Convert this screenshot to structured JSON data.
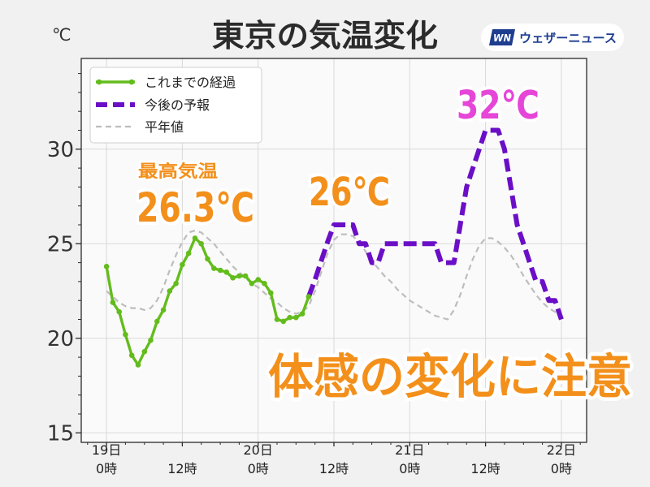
{
  "chart_data": {
    "type": "line",
    "title": "東京の気温変化",
    "ylabel": "℃",
    "xlim": [
      "18日20時",
      "22日4時"
    ],
    "ylim": [
      14.5,
      34.8
    ],
    "grid": true,
    "legend": "top-left",
    "y_ticks": [
      15,
      20,
      25,
      30
    ],
    "x_ticks": [
      {
        "time": "19日0時",
        "day": "19日",
        "hour": "0時"
      },
      {
        "time": "19日12時",
        "hour": "12時"
      },
      {
        "time": "20日0時",
        "day": "20日",
        "hour": "0時"
      },
      {
        "time": "20日12時",
        "hour": "12時"
      },
      {
        "time": "21日0時",
        "day": "21日",
        "hour": "0時"
      },
      {
        "time": "21日12時",
        "hour": "12時"
      },
      {
        "time": "22日0時",
        "day": "22日",
        "hour": "0時"
      }
    ],
    "x": [
      "19日0時",
      "19日1時",
      "19日2時",
      "19日3時",
      "19日4時",
      "19日5時",
      "19日6時",
      "19日7時",
      "19日8時",
      "19日9時",
      "19日10時",
      "19日11時",
      "19日12時",
      "19日13時",
      "19日14時",
      "19日15時",
      "19日16時",
      "19日17時",
      "19日18時",
      "19日19時",
      "19日20時",
      "19日21時",
      "19日22時",
      "19日23時",
      "20日0時",
      "20日1時",
      "20日2時",
      "20日3時",
      "20日4時",
      "20日5時",
      "20日6時",
      "20日7時",
      "20日8時",
      "20日9時",
      "20日10時",
      "20日11時",
      "20日12時",
      "20日13時",
      "20日14時",
      "20日15時",
      "20日16時",
      "20日17時",
      "20日18時",
      "20日19時",
      "20日20時",
      "20日21時",
      "20日22時",
      "20日23時",
      "21日0時",
      "21日1時",
      "21日2時",
      "21日3時",
      "21日4時",
      "21日5時",
      "21日6時",
      "21日7時",
      "21日8時",
      "21日9時",
      "21日10時",
      "21日11時",
      "21日12時",
      "21日13時",
      "21日14時",
      "21日15時",
      "21日16時",
      "21日17時",
      "21日18時",
      "21日19時",
      "21日20時",
      "21日21時",
      "21日22時",
      "21日23時",
      "22日0時"
    ],
    "series": [
      {
        "name": "これまでの経過",
        "color": "#63bc1c",
        "line_style": "solid",
        "markers": true,
        "values": [
          23.8,
          21.9,
          21.4,
          20.2,
          19.1,
          18.6,
          19.3,
          19.9,
          20.9,
          21.5,
          22.5,
          22.9,
          23.9,
          24.5,
          25.3,
          25.0,
          24.2,
          23.7,
          23.6,
          23.5,
          23.2,
          23.3,
          23.3,
          22.9,
          23.1,
          22.9,
          22.4,
          21.0,
          20.9,
          21.1,
          21.1,
          21.3,
          22.2,
          null,
          null,
          null,
          null,
          null,
          null,
          null,
          null,
          null,
          null,
          null,
          null,
          null,
          null,
          null,
          null,
          null,
          null,
          null,
          null,
          null,
          null,
          null,
          null,
          null,
          null,
          null,
          null,
          null,
          null,
          null,
          null,
          null,
          null,
          null,
          null,
          null,
          null,
          null,
          null
        ]
      },
      {
        "name": "今後の予報",
        "color": "#6a0fc6",
        "line_style": "dashed",
        "markers": false,
        "values": [
          null,
          null,
          null,
          null,
          null,
          null,
          null,
          null,
          null,
          null,
          null,
          null,
          null,
          null,
          null,
          null,
          null,
          null,
          null,
          null,
          null,
          null,
          null,
          null,
          null,
          null,
          null,
          null,
          null,
          null,
          null,
          null,
          22.2,
          23.1,
          24.1,
          25.1,
          26,
          26,
          26,
          26,
          25,
          25,
          24,
          24,
          25,
          25,
          25,
          25,
          25,
          25,
          25,
          25,
          25,
          24,
          24,
          24,
          26,
          28,
          29,
          30,
          31,
          31,
          31,
          30,
          28,
          26,
          25,
          24,
          23,
          23,
          22,
          22,
          21
        ]
      },
      {
        "name": "平年値",
        "color": "#bdbdbd",
        "line_style": "dashed",
        "markers": false,
        "values": [
          22.5,
          22.2,
          21.9,
          21.7,
          21.6,
          21.6,
          21.5,
          21.6,
          22.0,
          22.7,
          23.6,
          24.4,
          25.1,
          25.6,
          25.7,
          25.6,
          25.3,
          25.0,
          24.6,
          24.2,
          23.8,
          23.5,
          23.2,
          22.9,
          22.7,
          22.4,
          22.1,
          21.9,
          21.6,
          21.4,
          21.3,
          21.4,
          21.7,
          22.5,
          23.5,
          24.5,
          25.2,
          25.5,
          25.5,
          25.4,
          25.1,
          24.6,
          24.1,
          23.7,
          23.3,
          23.0,
          22.6,
          22.3,
          22.0,
          21.8,
          21.6,
          21.4,
          21.2,
          21.1,
          21.0,
          21.5,
          22.3,
          23.3,
          24.2,
          24.9,
          25.3,
          25.3,
          25.1,
          24.8,
          24.4,
          23.9,
          23.3,
          22.8,
          22.3,
          21.9,
          21.6,
          21.4,
          21.2
        ]
      }
    ],
    "annotations": [
      {
        "text": "最高気温",
        "color": "#f3901b"
      },
      {
        "text": "26.3℃",
        "color": "#f3901b"
      },
      {
        "text": "26℃",
        "color": "#f3901b"
      },
      {
        "text": "32℃",
        "color": "#e646d8"
      },
      {
        "text": "体感の変化に注意",
        "color": "#f3901b"
      }
    ]
  },
  "logo": {
    "mark": "WN",
    "text": "ウェザーニュース",
    "color": "#1d3d8f"
  }
}
